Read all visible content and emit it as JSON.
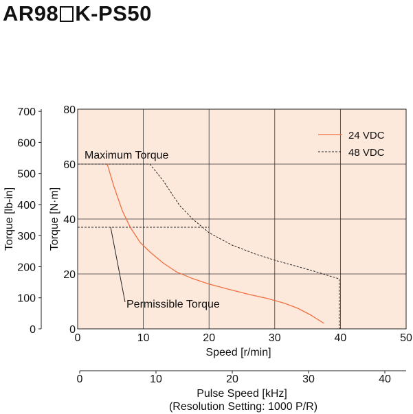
{
  "title": {
    "prefix": "AR98",
    "suffix": "K-PS50"
  },
  "chart_data": {
    "type": "line",
    "x_label": "Speed [r/min]",
    "x_ticks": [
      "0",
      "10",
      "20",
      "30",
      "40",
      "50"
    ],
    "xlim": [
      0,
      50
    ],
    "y_label": "Torque [N·m]",
    "y_ticks": [
      "0",
      "20",
      "40",
      "60",
      "80"
    ],
    "ylim": [
      0,
      80
    ],
    "y2_label": "Torque [lb-in]",
    "y2_ticks": [
      "0",
      "100",
      "200",
      "300",
      "400",
      "500",
      "600",
      "700"
    ],
    "y2_lim": [
      0,
      707
    ],
    "x2_label": "Pulse Speed [kHz]",
    "x2_sublabel": "(Resolution Setting: 1000 P/R)",
    "x2_ticks": [
      "0",
      "10",
      "20",
      "30",
      "40"
    ],
    "x2_lim": [
      0,
      42.7
    ],
    "grid": true,
    "background": "#fde8dc",
    "legend_position": "top-right",
    "series": [
      {
        "name": "24 VDC",
        "style": "solid",
        "color": "#f07040",
        "points": [
          [
            4.5,
            60
          ],
          [
            5.5,
            52
          ],
          [
            6.8,
            43
          ],
          [
            8,
            37
          ],
          [
            9.5,
            31.5
          ],
          [
            11,
            28
          ],
          [
            13,
            24
          ],
          [
            15,
            20.8
          ],
          [
            17.5,
            18.3
          ],
          [
            20,
            16.3
          ],
          [
            23,
            14.4
          ],
          [
            26,
            12.6
          ],
          [
            29,
            11
          ],
          [
            31.5,
            9.3
          ],
          [
            33.5,
            7.5
          ],
          [
            35.5,
            5
          ],
          [
            37.5,
            2
          ]
        ]
      },
      {
        "name": "48 VDC",
        "style": "dashed",
        "color": "#222222",
        "points": [
          [
            0,
            60
          ],
          [
            11,
            60
          ],
          [
            13,
            54
          ],
          [
            15.5,
            45
          ],
          [
            17.5,
            40
          ],
          [
            20,
            35
          ],
          [
            23.5,
            30.5
          ],
          [
            27,
            27.3
          ],
          [
            30,
            25
          ],
          [
            33,
            23
          ],
          [
            36,
            21
          ],
          [
            39,
            18.8
          ],
          [
            39.8,
            18.2
          ],
          [
            39.8,
            0
          ]
        ]
      }
    ],
    "reference_lines": [
      {
        "y": 37,
        "x_end": 20,
        "style": "dashed"
      }
    ],
    "annotations": [
      {
        "text": "Maximum Torque",
        "points_to": [
          0.5,
          60
        ]
      },
      {
        "text": "Permissible Torque",
        "points_to": [
          2.2,
          37
        ]
      }
    ]
  }
}
